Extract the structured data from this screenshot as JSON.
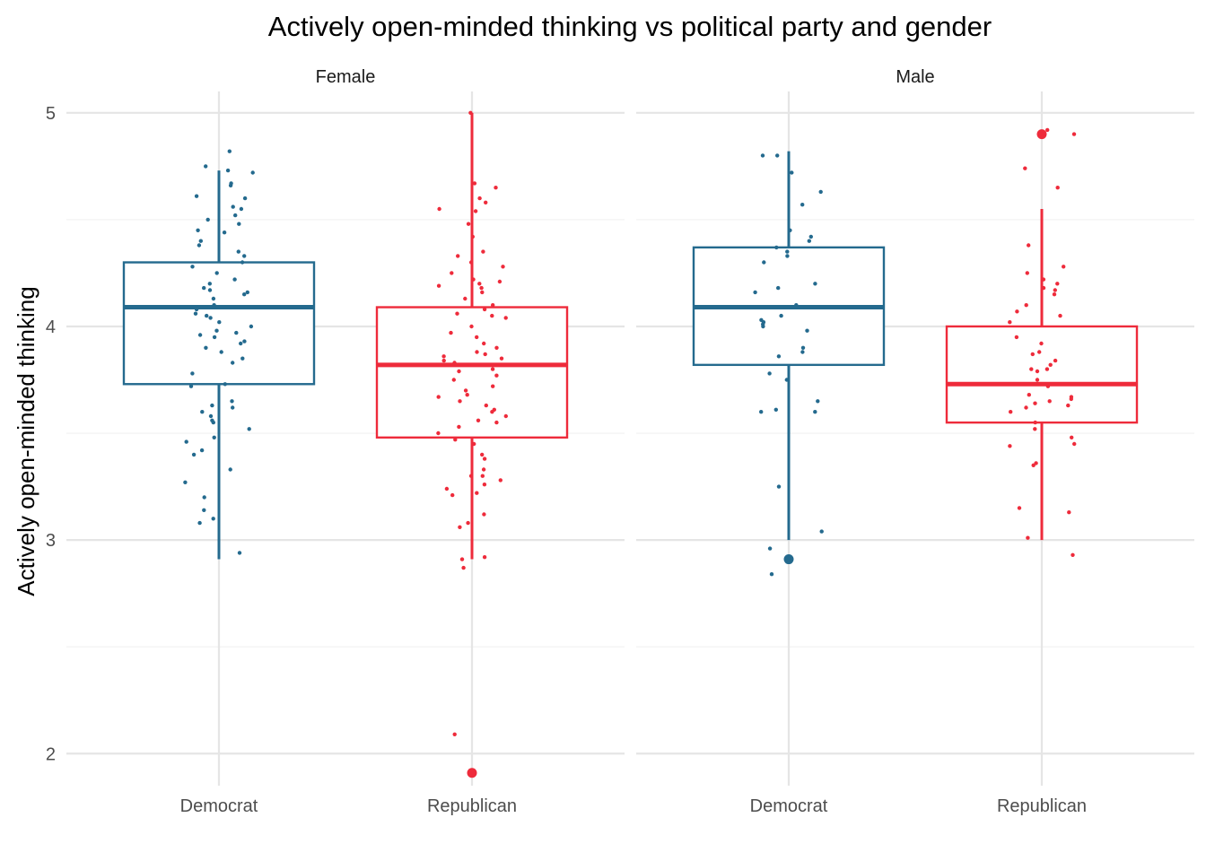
{
  "chart_data": {
    "type": "boxplot",
    "title": "Actively open-minded thinking vs political party and gender",
    "xlabel": "",
    "ylabel": "Actively open-minded thinking",
    "ylim": [
      1.85,
      5.1
    ],
    "y_ticks": [
      "2",
      "3",
      "4",
      "5"
    ],
    "categories": [
      "Democrat",
      "Republican"
    ],
    "colors": {
      "Democrat": "#246a8e",
      "Republican": "#ee2b3b"
    },
    "grid": true,
    "legend": "none",
    "facets": [
      {
        "label": "Female",
        "boxes": [
          {
            "category": "Democrat",
            "q1": 3.73,
            "median": 4.09,
            "q3": 4.3,
            "whisker_low": 2.91,
            "whisker_high": 4.73,
            "outliers": [],
            "points": [
              4.82,
              4.75,
              4.73,
              4.72,
              4.67,
              4.66,
              4.61,
              4.6,
              4.56,
              4.55,
              4.52,
              4.5,
              4.48,
              4.45,
              4.44,
              4.4,
              4.38,
              4.35,
              4.33,
              4.3,
              4.28,
              4.25,
              4.22,
              4.2,
              4.18,
              4.17,
              4.16,
              4.15,
              4.13,
              4.1,
              4.09,
              4.08,
              4.06,
              4.05,
              4.04,
              4.02,
              4.0,
              3.98,
              3.97,
              3.96,
              3.95,
              3.93,
              3.92,
              3.9,
              3.88,
              3.85,
              3.83,
              3.78,
              3.73,
              3.72,
              3.65,
              3.63,
              3.62,
              3.6,
              3.58,
              3.56,
              3.55,
              3.52,
              3.48,
              3.46,
              3.42,
              3.4,
              3.33,
              3.27,
              3.2,
              3.14,
              3.1,
              3.08,
              2.94
            ]
          },
          {
            "category": "Republican",
            "q1": 3.48,
            "median": 3.82,
            "q3": 4.09,
            "whisker_low": 2.91,
            "whisker_high": 5.0,
            "outliers": [
              1.91
            ],
            "points": [
              5.0,
              4.67,
              4.65,
              4.6,
              4.58,
              4.55,
              4.54,
              4.48,
              4.42,
              4.35,
              4.33,
              4.3,
              4.28,
              4.25,
              4.22,
              4.21,
              4.2,
              4.19,
              4.18,
              4.16,
              4.13,
              4.1,
              4.08,
              4.06,
              4.05,
              4.04,
              4.0,
              3.97,
              3.95,
              3.92,
              3.9,
              3.88,
              3.87,
              3.86,
              3.85,
              3.84,
              3.83,
              3.82,
              3.8,
              3.79,
              3.77,
              3.75,
              3.72,
              3.7,
              3.68,
              3.67,
              3.65,
              3.63,
              3.61,
              3.6,
              3.58,
              3.56,
              3.55,
              3.53,
              3.5,
              3.47,
              3.45,
              3.4,
              3.38,
              3.33,
              3.3,
              3.3,
              3.28,
              3.26,
              3.24,
              3.22,
              3.21,
              3.12,
              3.08,
              3.06,
              2.92,
              2.91,
              2.87,
              2.09
            ]
          }
        ]
      },
      {
        "label": "Male",
        "boxes": [
          {
            "category": "Democrat",
            "q1": 3.82,
            "median": 4.09,
            "q3": 4.37,
            "whisker_low": 3.0,
            "whisker_high": 4.82,
            "outliers": [
              2.91
            ],
            "points": [
              4.8,
              4.8,
              4.72,
              4.63,
              4.57,
              4.45,
              4.42,
              4.4,
              4.37,
              4.35,
              4.33,
              4.3,
              4.2,
              4.18,
              4.16,
              4.1,
              4.05,
              4.03,
              4.02,
              4.01,
              4.0,
              3.98,
              3.9,
              3.88,
              3.86,
              3.78,
              3.75,
              3.65,
              3.61,
              3.6,
              3.6,
              3.25,
              3.04,
              2.96,
              2.84
            ]
          },
          {
            "category": "Republican",
            "q1": 3.55,
            "median": 3.73,
            "q3": 4.0,
            "whisker_low": 3.0,
            "whisker_high": 4.55,
            "outliers": [
              4.9
            ],
            "points": [
              4.92,
              4.9,
              4.74,
              4.65,
              4.38,
              4.28,
              4.25,
              4.22,
              4.2,
              4.18,
              4.17,
              4.15,
              4.1,
              4.07,
              4.05,
              4.02,
              3.95,
              3.92,
              3.88,
              3.87,
              3.84,
              3.82,
              3.8,
              3.8,
              3.79,
              3.75,
              3.72,
              3.68,
              3.67,
              3.66,
              3.65,
              3.64,
              3.63,
              3.62,
              3.6,
              3.55,
              3.52,
              3.48,
              3.45,
              3.44,
              3.36,
              3.35,
              3.15,
              3.13,
              3.01,
              2.93
            ]
          }
        ]
      }
    ]
  }
}
